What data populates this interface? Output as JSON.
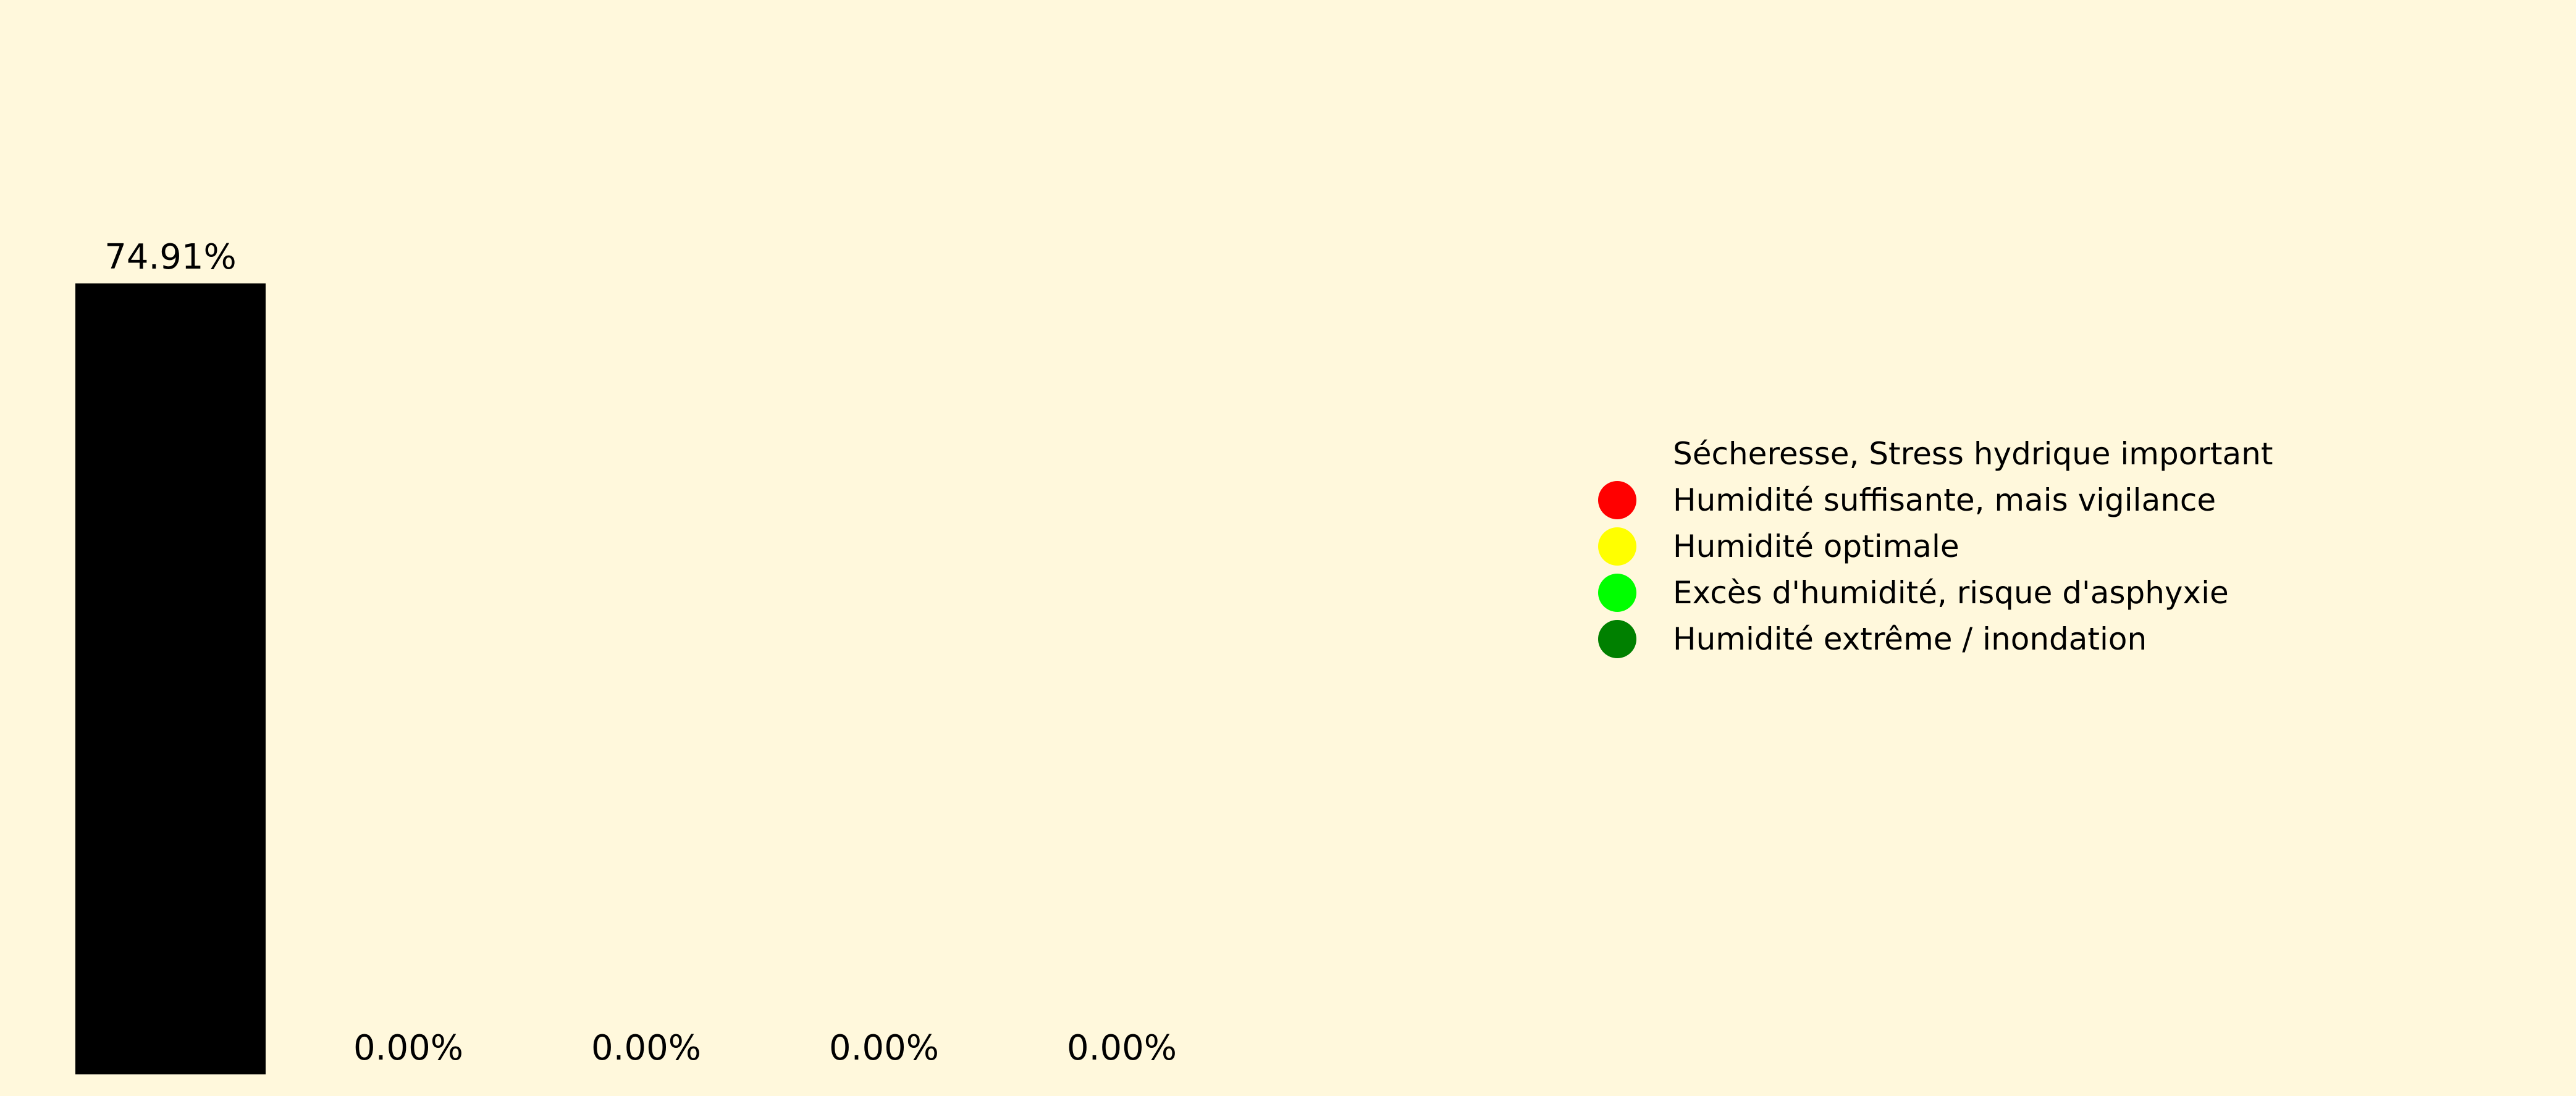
{
  "chart_data": {
    "type": "bar",
    "categories": [
      "",
      "",
      "",
      "",
      ""
    ],
    "values": [
      74.91,
      0.0,
      0.0,
      0.0,
      0.0
    ],
    "data_labels": [
      "74.91%",
      "0.00%",
      "0.00%",
      "0.00%",
      "0.00%"
    ],
    "bar_colors": [
      "#000000",
      "#ff0000",
      "#ffff00",
      "#00ff00",
      "#008000"
    ],
    "title": "",
    "xlabel": "",
    "ylabel": "",
    "ylim": [
      0,
      100
    ],
    "grid": false,
    "axes_visible": false,
    "background": "#fff8dc",
    "legend": {
      "placement": "center-right",
      "entries": [
        {
          "label": "Sécheresse, Stress hydrique important",
          "color": "#fff8dc"
        },
        {
          "label": "Humidité suffisante, mais vigilance",
          "color": "#ff0000"
        },
        {
          "label": "Humidité optimale",
          "color": "#ffff00"
        },
        {
          "label": "Excès d'humidité, risque d'asphyxie",
          "color": "#00ff00"
        },
        {
          "label": "Humidité extrême / inondation",
          "color": "#008000"
        }
      ]
    }
  }
}
